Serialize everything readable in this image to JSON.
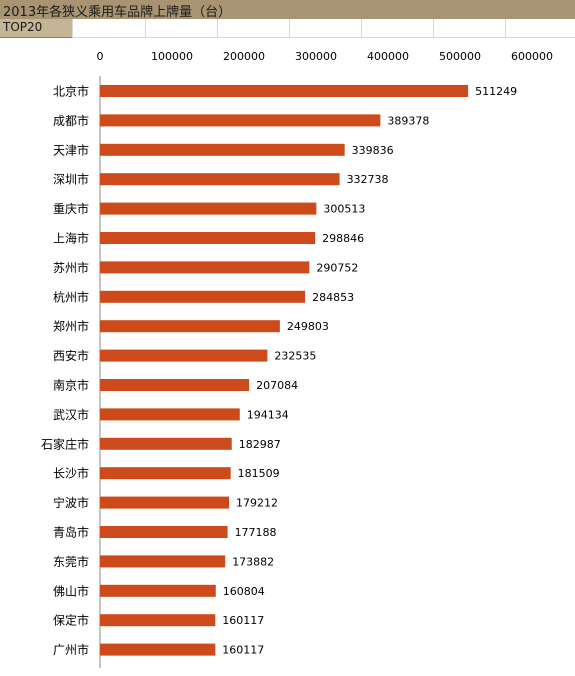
{
  "title": "2013年各狭义乘用车品牌上牌量（台）",
  "subtitle": "TOP20",
  "colors": {
    "bar": "#cd4a1b",
    "header": "#a89472",
    "subheader": "#c4b596"
  },
  "chart_data": {
    "type": "bar",
    "orientation": "horizontal",
    "title": "2013年各狭义乘用车品牌上牌量（台）",
    "subtitle": "TOP20",
    "categories": [
      "北京市",
      "成都市",
      "天津市",
      "深圳市",
      "重庆市",
      "上海市",
      "苏州市",
      "杭州市",
      "郑州市",
      "西安市",
      "南京市",
      "武汉市",
      "石家庄市",
      "长沙市",
      "宁波市",
      "青岛市",
      "东莞市",
      "佛山市",
      "保定市",
      "广州市"
    ],
    "values": [
      511249,
      389378,
      339836,
      332738,
      300513,
      298846,
      290752,
      284853,
      249803,
      232535,
      207084,
      194134,
      182987,
      181509,
      179212,
      177188,
      173882,
      160804,
      160117,
      160117
    ],
    "x_ticks": [
      0,
      100000,
      200000,
      300000,
      400000,
      500000,
      600000
    ],
    "xlim": [
      0,
      600000
    ],
    "grid": false,
    "legend": "none"
  }
}
